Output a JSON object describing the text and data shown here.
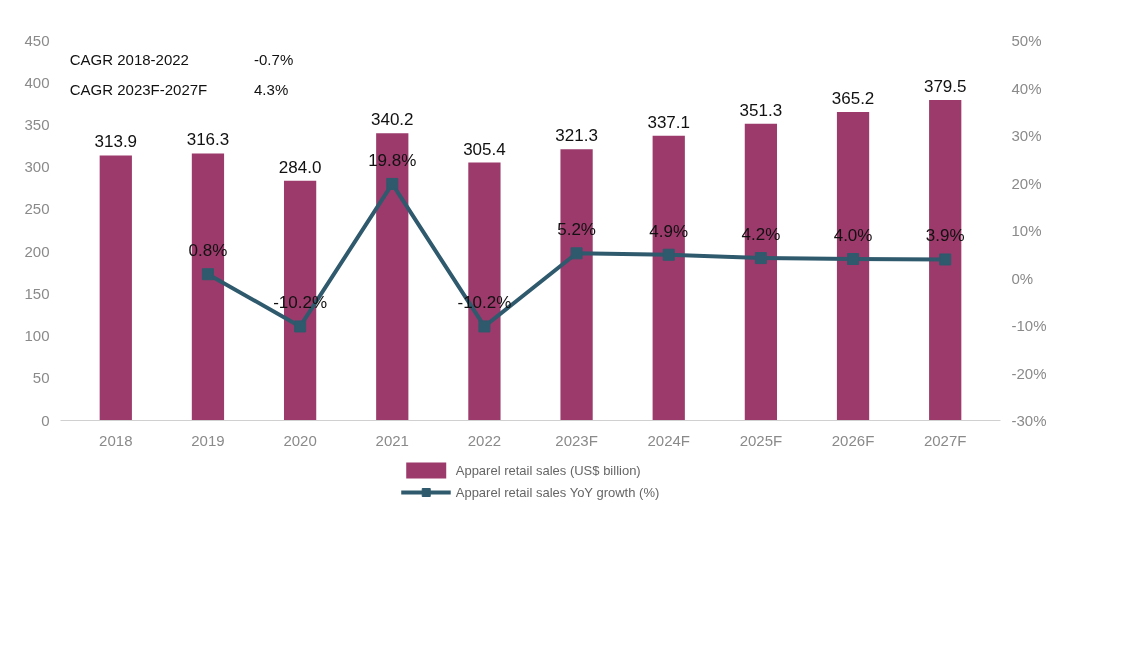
{
  "chart_data": {
    "type": "bar",
    "categories": [
      "2018",
      "2019",
      "2020",
      "2021",
      "2022",
      "2023F",
      "2024F",
      "2025F",
      "2026F",
      "2027F"
    ],
    "series": [
      {
        "name": "Apparel retail sales (US$ billion)",
        "color": "#9b3a6b",
        "values": [
          313.9,
          316.3,
          284.0,
          340.2,
          305.4,
          321.3,
          337.1,
          351.3,
          365.2,
          379.5
        ],
        "value_labels": [
          "313.9",
          "316.3",
          "284.0",
          "340.2",
          "305.4",
          "321.3",
          "337.1",
          "351.3",
          "365.2",
          "379.5"
        ]
      },
      {
        "name": "Apparel retail sales YoY growth (%)",
        "type": "line",
        "axis": "y2",
        "color": "#2f5a6d",
        "marker": "square",
        "values": [
          null,
          0.8,
          -10.2,
          19.8,
          -10.2,
          5.2,
          4.9,
          4.2,
          4.0,
          3.9
        ],
        "value_labels": [
          null,
          "0.8%",
          "-10.2%",
          "19.8%",
          "-10.2%",
          "5.2%",
          "4.9%",
          "4.2%",
          "4.0%",
          "3.9%"
        ]
      }
    ],
    "ylim": [
      0,
      450
    ],
    "yticks": [
      0,
      50,
      100,
      150,
      200,
      250,
      300,
      350,
      400,
      450
    ],
    "y2lim": [
      -30,
      50
    ],
    "y2ticks": [
      {
        "value": -30,
        "label": "-30%"
      },
      {
        "value": -20,
        "label": "-20%"
      },
      {
        "value": -10,
        "label": "-10%"
      },
      {
        "value": 0,
        "label": "0%"
      },
      {
        "value": 10,
        "label": "10%"
      },
      {
        "value": 20,
        "label": "20%"
      },
      {
        "value": 30,
        "label": "30%"
      },
      {
        "value": 40,
        "label": "40%"
      },
      {
        "value": 50,
        "label": "50%"
      }
    ],
    "annotations": [
      "CAGR 2018-2022",
      "-0.7%",
      "CAGR 2023F-2027F",
      "4.3%"
    ],
    "grid": false,
    "legend": "bottom"
  }
}
